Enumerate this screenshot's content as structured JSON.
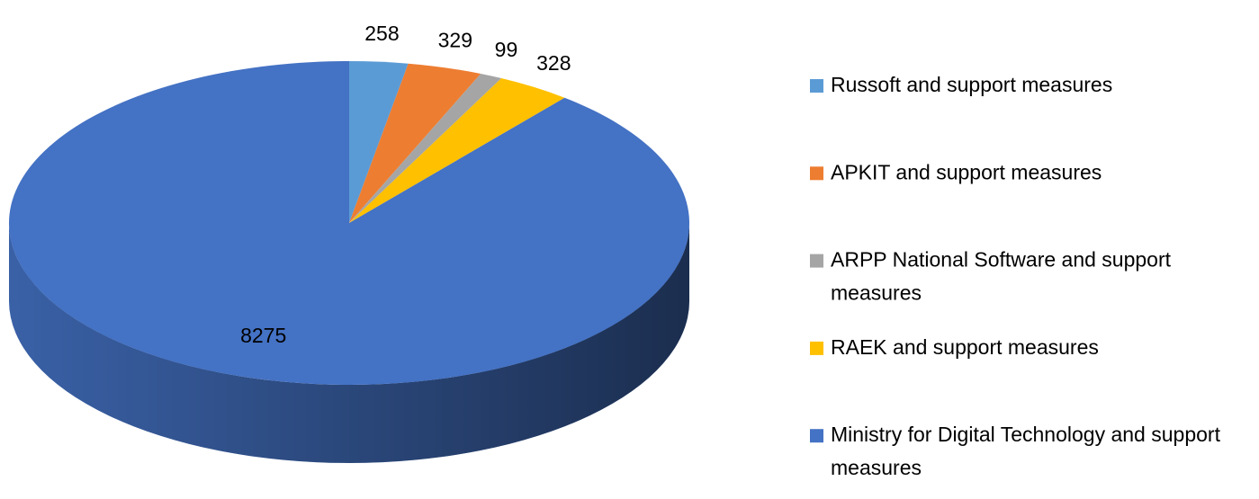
{
  "chart_data": {
    "type": "pie3d",
    "categories": [
      "Russoft and support measures",
      "APKIT and support measures",
      "ARPP National Software and support measures",
      "RAEK and support measures",
      "Ministry for Digital Technology and support measures"
    ],
    "values": [
      258,
      329,
      99,
      328,
      8275
    ],
    "colors": [
      "#5b9bd5",
      "#ed7d31",
      "#a5a5a5",
      "#ffc000",
      "#4472c4"
    ],
    "legend": "right"
  }
}
